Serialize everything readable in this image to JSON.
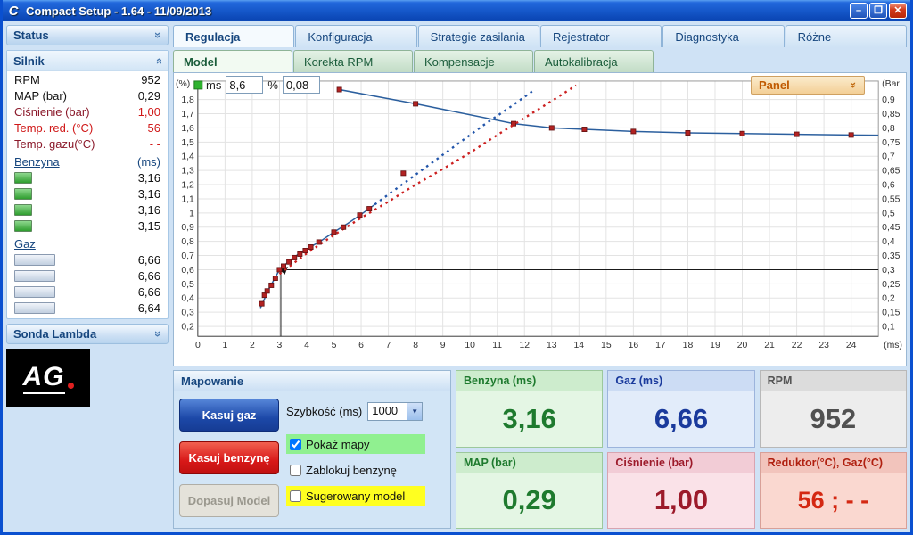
{
  "window": {
    "title": "Compact Setup - 1.64 - 11/09/2013",
    "icon": "C"
  },
  "titlebar_buttons": {
    "minimize": "–",
    "maximize": "❐",
    "close": "✕"
  },
  "colors": {
    "accent_blue": "#16467e",
    "status_red": "#d01818",
    "tile_green": "#1e7a2e",
    "tile_blue": "#1a3a9c",
    "tile_dark_red": "#9c1a2a",
    "panel_orange": "#c05a00",
    "series_blue": "#2b5f9e",
    "series_red": "#cc2020",
    "marker_red": "#b22222"
  },
  "sidebar": {
    "status_header": "Status",
    "silnik_header": "Silnik",
    "params": [
      {
        "label": "RPM",
        "value": "952"
      },
      {
        "label": "MAP (bar)",
        "value": "0,29"
      },
      {
        "label": "Ciśnienie (bar)",
        "value": "1,00"
      },
      {
        "label": "Temp. red. (°C)",
        "value": "56"
      },
      {
        "label": "Temp. gazu(°C)",
        "value": "- -"
      }
    ],
    "benzyna": {
      "label": "Benzyna",
      "unit": "(ms)",
      "values": [
        "3,16",
        "3,16",
        "3,16",
        "3,15"
      ]
    },
    "gaz": {
      "label": "Gaz",
      "values": [
        "6,66",
        "6,66",
        "6,66",
        "6,64"
      ]
    },
    "sonda_header": "Sonda Lambda",
    "logo_text": "AG"
  },
  "tabs": {
    "main": [
      "Regulacja",
      "Konfiguracja",
      "Strategie zasilania",
      "Rejestrator",
      "Diagnostyka",
      "Różne"
    ],
    "active_main": "Regulacja",
    "sub": [
      "Model",
      "Korekta RPM",
      "Kompensacje",
      "Autokalibracja"
    ],
    "active_sub": "Model"
  },
  "chart_controls": {
    "ms_label": "ms",
    "ms_value": "8,6",
    "percent_label": "%",
    "percent_value": "0,08",
    "panel_button": "Panel"
  },
  "chart_data": {
    "type": "line",
    "title": "",
    "xlabel": "(ms)",
    "ylabel_left": "(%)",
    "ylabel_right": "(Bar",
    "xlim": [
      0,
      25
    ],
    "ylim_left": [
      0.13,
      1.93
    ],
    "grid": true,
    "x_ticks": [
      "0",
      "1",
      "2",
      "3",
      "4",
      "5",
      "6",
      "7",
      "8",
      "9",
      "10",
      "11",
      "12",
      "13",
      "14",
      "15",
      "16",
      "17",
      "18",
      "19",
      "20",
      "21",
      "22",
      "23",
      "24"
    ],
    "y_left_ticks": [
      "1,8",
      "1,7",
      "1,6",
      "1,5",
      "1,4",
      "1,3",
      "1,2",
      "1,1",
      "1",
      "0,9",
      "0,8",
      "0,7",
      "0,6",
      "0,5",
      "0,4",
      "0,3",
      "0,2"
    ],
    "y_right_ticks": [
      "0,9",
      "0,85",
      "0,8",
      "0,75",
      "0,7",
      "0,65",
      "0,6",
      "0,55",
      "0,5",
      "0,45",
      "0,4",
      "0,35",
      "0,3",
      "0,25",
      "0,2",
      "0,15",
      "0,1"
    ],
    "series": [
      {
        "name": "model-benzyna-gaz",
        "color": "#2b5f9e",
        "style": "solid",
        "markers": true,
        "points": [
          [
            5.2,
            1.87
          ],
          [
            8.0,
            1.77
          ],
          [
            11.6,
            1.63
          ],
          [
            13.0,
            1.6
          ],
          [
            14.2,
            1.59
          ],
          [
            16.0,
            1.575
          ],
          [
            18.0,
            1.565
          ],
          [
            20.0,
            1.56
          ],
          [
            22.0,
            1.555
          ],
          [
            24.0,
            1.55
          ],
          [
            25.0,
            1.548
          ]
        ]
      },
      {
        "name": "mapa-solid",
        "color": "#2b5f9e",
        "style": "solid",
        "markers": false,
        "points": [
          [
            2.3,
            0.33
          ],
          [
            2.6,
            0.46
          ],
          [
            3.0,
            0.6
          ],
          [
            3.5,
            0.685
          ],
          [
            4.0,
            0.745
          ],
          [
            4.5,
            0.8
          ],
          [
            5.0,
            0.865
          ],
          [
            5.5,
            0.925
          ],
          [
            6.0,
            0.99
          ],
          [
            6.5,
            1.06
          ]
        ]
      },
      {
        "name": "mapa-benzyna-projekcja",
        "color": "#2255aa",
        "style": "dotted",
        "markers": false,
        "points": [
          [
            6.5,
            1.06
          ],
          [
            7.5,
            1.2
          ],
          [
            8.5,
            1.34
          ],
          [
            9.5,
            1.48
          ],
          [
            10.5,
            1.62
          ],
          [
            11.5,
            1.75
          ],
          [
            12.3,
            1.86
          ]
        ]
      },
      {
        "name": "mapa-gaz-projekcja",
        "color": "#cc2020",
        "style": "dotted",
        "markers": false,
        "points": [
          [
            3.0,
            0.57
          ],
          [
            4.0,
            0.715
          ],
          [
            5.0,
            0.845
          ],
          [
            6.0,
            0.965
          ],
          [
            7.0,
            1.08
          ],
          [
            8.0,
            1.2
          ],
          [
            9.0,
            1.31
          ],
          [
            10.0,
            1.425
          ],
          [
            11.0,
            1.55
          ],
          [
            12.0,
            1.67
          ],
          [
            13.0,
            1.79
          ],
          [
            13.9,
            1.9
          ]
        ]
      }
    ],
    "scatter_markers": {
      "name": "punkty-mapy",
      "color": "#b22222",
      "points": [
        [
          2.35,
          0.36
        ],
        [
          2.45,
          0.42
        ],
        [
          2.55,
          0.45
        ],
        [
          2.7,
          0.49
        ],
        [
          2.85,
          0.54
        ],
        [
          3.0,
          0.6
        ],
        [
          3.15,
          0.625
        ],
        [
          3.35,
          0.655
        ],
        [
          3.55,
          0.685
        ],
        [
          3.75,
          0.71
        ],
        [
          3.95,
          0.735
        ],
        [
          4.15,
          0.76
        ],
        [
          4.45,
          0.795
        ],
        [
          5.0,
          0.865
        ],
        [
          5.35,
          0.9
        ],
        [
          5.95,
          0.985
        ],
        [
          6.3,
          1.03
        ],
        [
          7.55,
          1.28
        ]
      ]
    },
    "crosshair": {
      "x": 3.05,
      "y": 0.6
    },
    "drag_handle": {
      "x": 0,
      "y": 1.93,
      "color": "#2fb32f"
    }
  },
  "mapowanie": {
    "header": "Mapowanie",
    "buttons": {
      "kasuj_gaz": "Kasuj gaz",
      "kasuj_benzyne": "Kasuj benzynę",
      "dopasuj_model": "Dopasuj Model"
    },
    "szybkosc_label": "Szybkość (ms)",
    "szybkosc_value": "1000",
    "checkboxes": [
      {
        "label": "Pokaż mapy",
        "checked": true
      },
      {
        "label": "Zablokuj benzynę",
        "checked": false
      },
      {
        "label": "Sugerowany model",
        "checked": false
      }
    ]
  },
  "tiles": [
    {
      "label": "Benzyna (ms)",
      "value": "3,16"
    },
    {
      "label": "Gaz (ms)",
      "value": "6,66"
    },
    {
      "label": "RPM",
      "value": "952"
    },
    {
      "label": "MAP (bar)",
      "value": "0,29"
    },
    {
      "label": "Ciśnienie (bar)",
      "value": "1,00"
    },
    {
      "label": "Reduktor(°C), Gaz(°C)",
      "value": "56 ; - -"
    }
  ]
}
